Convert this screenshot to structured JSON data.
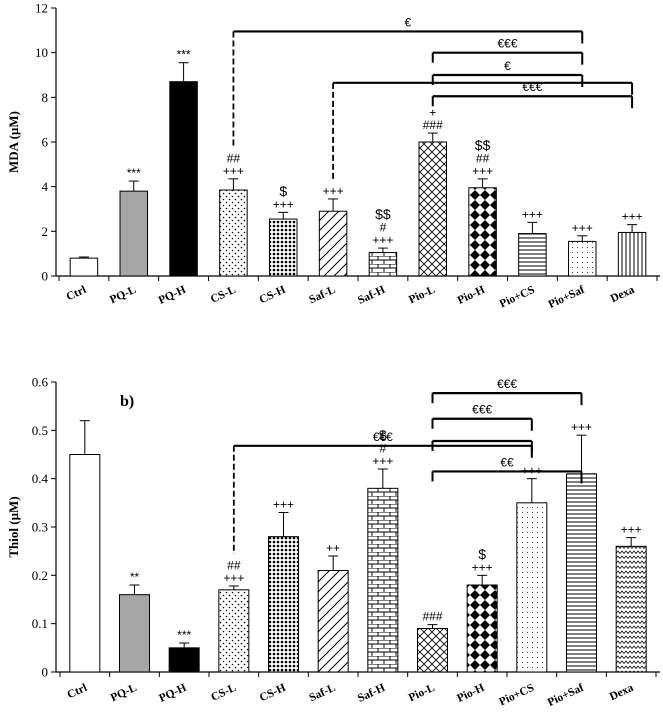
{
  "chart_data": [
    {
      "type": "bar",
      "panel_label": "",
      "ylabel": "MDA  (µM)",
      "ylim": [
        0,
        12
      ],
      "yticks": [
        0,
        2,
        4,
        6,
        8,
        10,
        12
      ],
      "ytick_labels": [
        "0",
        "2",
        "4",
        "6",
        "8",
        "10",
        "12"
      ],
      "categories": [
        "Ctrl",
        "PQ-L",
        "PQ-H",
        "CS-L",
        "CS-H",
        "Saf-L",
        "Saf-H",
        "Pio-L",
        "Pio-H",
        "Pio+CS",
        "Pio+Saf",
        "Dexa"
      ],
      "values": [
        0.8,
        3.8,
        8.7,
        3.85,
        2.55,
        2.9,
        1.05,
        6.0,
        3.95,
        1.9,
        1.55,
        1.95
      ],
      "errors": [
        0.05,
        0.45,
        0.85,
        0.5,
        0.3,
        0.55,
        0.2,
        0.4,
        0.4,
        0.5,
        0.25,
        0.35
      ],
      "patterns": [
        "white",
        "gray",
        "black",
        "sparse-dots",
        "dense-dots",
        "back-diag",
        "brick",
        "crosshatch",
        "diamonds",
        "horizontal",
        "fine-dots",
        "vertical"
      ],
      "annotations": [
        [],
        [
          "***"
        ],
        [
          "***"
        ],
        [
          "+++",
          "##"
        ],
        [
          "+++",
          "$"
        ],
        [
          "+++"
        ],
        [
          "+++",
          "#",
          "$$"
        ],
        [
          "###",
          "+"
        ],
        [
          "+++",
          "##",
          "$$"
        ],
        [
          "+++"
        ],
        [
          "+++"
        ],
        [
          "+++"
        ]
      ],
      "brackets": [
        {
          "from": 3,
          "to": 10,
          "label": "€",
          "level": 10.95,
          "dashed_from": true
        },
        {
          "from": 7,
          "to": 10,
          "label": "€€€",
          "level": 10.0,
          "dashed_from": false
        },
        {
          "from": 7,
          "to": 10,
          "label": "€",
          "level": 9.0,
          "dashed_from": false
        },
        {
          "from": 5,
          "to": 11,
          "label": "",
          "level": 8.65,
          "dashed_from": true
        },
        {
          "from": 7,
          "to": 11,
          "label": "€€€",
          "level": 8.05,
          "dashed_from": false
        }
      ]
    },
    {
      "type": "bar",
      "panel_label": "b)",
      "ylabel": "Thiol  (µM)",
      "ylim": [
        0,
        0.6
      ],
      "yticks": [
        0,
        0.1,
        0.2,
        0.3,
        0.4,
        0.5,
        0.6
      ],
      "ytick_labels": [
        "0",
        "0.1",
        "0.2",
        "0.3",
        "0.4",
        "0.5",
        "0.6"
      ],
      "categories": [
        "Ctrl",
        "PQ-L",
        "PQ-H",
        "CS-L",
        "CS-H",
        "Saf-L",
        "Saf-H",
        "Pio-L",
        "Pio-H",
        "Pio+CS",
        "Pio+Saf",
        "Dexa"
      ],
      "values": [
        0.45,
        0.16,
        0.05,
        0.17,
        0.28,
        0.21,
        0.38,
        0.09,
        0.18,
        0.35,
        0.41,
        0.26
      ],
      "errors": [
        0.07,
        0.02,
        0.01,
        0.008,
        0.05,
        0.03,
        0.04,
        0.008,
        0.02,
        0.05,
        0.08,
        0.018
      ],
      "patterns": [
        "white",
        "gray",
        "black",
        "sparse-dots",
        "dense-dots",
        "back-diag",
        "brick",
        "crosshatch",
        "diamonds",
        "fine-dots",
        "horizontal",
        "zigzag"
      ],
      "annotations": [
        [],
        [
          "**"
        ],
        [
          "***"
        ],
        [
          "+++",
          "##"
        ],
        [
          "+++"
        ],
        [
          "++"
        ],
        [
          "+++",
          "#",
          "$"
        ],
        [
          "###"
        ],
        [
          "+++",
          "$"
        ],
        [
          "+++"
        ],
        [
          "+++"
        ],
        [
          "+++"
        ]
      ],
      "brackets": [
        {
          "from": 3,
          "to": 9,
          "label": "€€€",
          "level": 0.468,
          "dashed_from": true
        },
        {
          "from": 7,
          "to": 10,
          "label": "€€€",
          "level": 0.577,
          "dashed_from": false
        },
        {
          "from": 7,
          "to": 9,
          "label": "€€€",
          "level": 0.524,
          "dashed_from": false
        },
        {
          "from": 7,
          "to": 9,
          "label": "",
          "level": 0.478,
          "dashed_from": false
        },
        {
          "from": 7,
          "to": 10,
          "label": "€€",
          "level": 0.415,
          "dashed_from": false
        }
      ]
    }
  ]
}
